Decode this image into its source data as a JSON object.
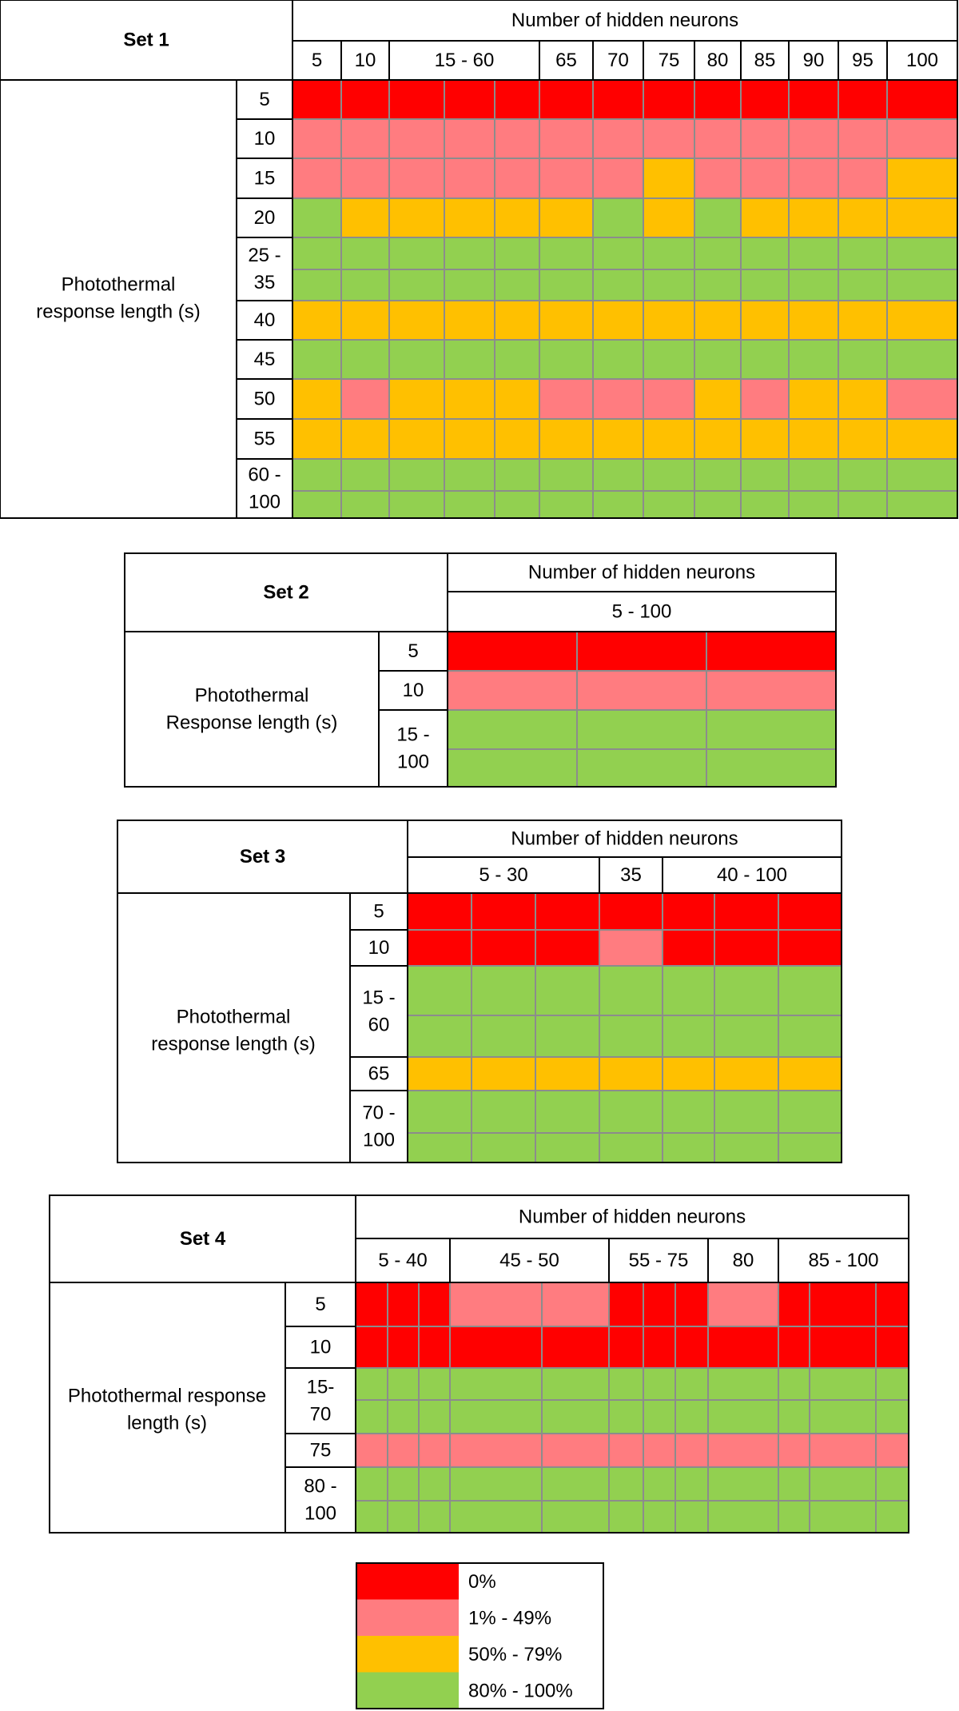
{
  "colors": {
    "c0": "#ff0000",
    "c1": "#ff7c80",
    "c2": "#ffc000",
    "c3": "#92d050",
    "grid": "#8c8c8c",
    "border": "#000000"
  },
  "chart_data": [
    {
      "type": "heatmap",
      "title": "Set 1",
      "xlabel": "Number of hidden neurons",
      "ylabel": "Photothermal response length (s)",
      "x_groups": [
        {
          "label": "5",
          "cols": 1
        },
        {
          "label": "10",
          "cols": 1
        },
        {
          "label": "15 - 60",
          "cols": 3
        },
        {
          "label": "65",
          "cols": 1
        },
        {
          "label": "70",
          "cols": 1
        },
        {
          "label": "75",
          "cols": 1
        },
        {
          "label": "80",
          "cols": 1
        },
        {
          "label": "85",
          "cols": 1
        },
        {
          "label": "90",
          "cols": 1
        },
        {
          "label": "95",
          "cols": 1
        },
        {
          "label": "100",
          "cols": 1
        }
      ],
      "y_groups": [
        {
          "label": "5",
          "rows": 1
        },
        {
          "label": "10",
          "rows": 1
        },
        {
          "label": "15",
          "rows": 1
        },
        {
          "label": "20",
          "rows": 1
        },
        {
          "label": "25 - 35",
          "rows": 2
        },
        {
          "label": "40",
          "rows": 1
        },
        {
          "label": "45",
          "rows": 1
        },
        {
          "label": "50",
          "rows": 1
        },
        {
          "label": "55",
          "rows": 1
        },
        {
          "label": "60 - 100",
          "rows": 2
        }
      ],
      "cells": [
        [
          0,
          0,
          0,
          0,
          0,
          0,
          0,
          0,
          0,
          0,
          0,
          0,
          0
        ],
        [
          1,
          1,
          1,
          1,
          1,
          1,
          1,
          1,
          1,
          1,
          1,
          1,
          1
        ],
        [
          1,
          1,
          1,
          1,
          1,
          1,
          1,
          2,
          1,
          1,
          1,
          1,
          2
        ],
        [
          3,
          2,
          2,
          2,
          2,
          2,
          3,
          2,
          3,
          2,
          2,
          2,
          2
        ],
        [
          3,
          3,
          3,
          3,
          3,
          3,
          3,
          3,
          3,
          3,
          3,
          3,
          3
        ],
        [
          3,
          3,
          3,
          3,
          3,
          3,
          3,
          3,
          3,
          3,
          3,
          3,
          3
        ],
        [
          2,
          2,
          2,
          2,
          2,
          2,
          2,
          2,
          2,
          2,
          2,
          2,
          2
        ],
        [
          3,
          3,
          3,
          3,
          3,
          3,
          3,
          3,
          3,
          3,
          3,
          3,
          3
        ],
        [
          2,
          1,
          2,
          2,
          2,
          1,
          1,
          1,
          2,
          1,
          2,
          2,
          1
        ],
        [
          2,
          2,
          2,
          2,
          2,
          2,
          2,
          2,
          2,
          2,
          2,
          2,
          2
        ],
        [
          3,
          3,
          3,
          3,
          3,
          3,
          3,
          3,
          3,
          3,
          3,
          3,
          3
        ],
        [
          3,
          3,
          3,
          3,
          3,
          3,
          3,
          3,
          3,
          3,
          3,
          3,
          3
        ]
      ]
    },
    {
      "type": "heatmap",
      "title": "Set 2",
      "xlabel": "Number of hidden neurons",
      "ylabel": "Photothermal Response length (s)",
      "x_groups": [
        {
          "label": "5 - 100",
          "cols": 3
        }
      ],
      "y_groups": [
        {
          "label": "5",
          "rows": 1
        },
        {
          "label": "10",
          "rows": 1
        },
        {
          "label": "15 - 100",
          "rows": 2
        }
      ],
      "cells": [
        [
          0,
          0,
          0
        ],
        [
          1,
          1,
          1
        ],
        [
          3,
          3,
          3
        ],
        [
          3,
          3,
          3
        ]
      ]
    },
    {
      "type": "heatmap",
      "title": "Set 3",
      "xlabel": "Number of hidden neurons",
      "ylabel": "Photothermal response length (s)",
      "x_groups": [
        {
          "label": "5 - 30",
          "cols": 3
        },
        {
          "label": "35",
          "cols": 1
        },
        {
          "label": "40 - 100",
          "cols": 3
        }
      ],
      "y_groups": [
        {
          "label": "5",
          "rows": 1
        },
        {
          "label": "10",
          "rows": 1
        },
        {
          "label": "15 - 60",
          "rows": 2
        },
        {
          "label": "65",
          "rows": 1
        },
        {
          "label": "70 - 100",
          "rows": 2
        }
      ],
      "cells": [
        [
          0,
          0,
          0,
          0,
          0,
          0,
          0
        ],
        [
          0,
          0,
          0,
          1,
          0,
          0,
          0
        ],
        [
          3,
          3,
          3,
          3,
          3,
          3,
          3
        ],
        [
          3,
          3,
          3,
          3,
          3,
          3,
          3
        ],
        [
          2,
          2,
          2,
          2,
          2,
          2,
          2
        ],
        [
          3,
          3,
          3,
          3,
          3,
          3,
          3
        ],
        [
          3,
          3,
          3,
          3,
          3,
          3,
          3
        ]
      ]
    },
    {
      "type": "heatmap",
      "title": "Set 4",
      "xlabel": "Number of hidden neurons",
      "ylabel": "Photothermal response length (s)",
      "x_groups": [
        {
          "label": "5 - 40",
          "cols": 3
        },
        {
          "label": "45 - 50",
          "cols": 2
        },
        {
          "label": "55 - 75",
          "cols": 3
        },
        {
          "label": "80",
          "cols": 1
        },
        {
          "label": "85 - 100",
          "cols": 3
        }
      ],
      "y_groups": [
        {
          "label": "5",
          "rows": 1
        },
        {
          "label": "10",
          "rows": 1
        },
        {
          "label": "15- 70",
          "rows": 2
        },
        {
          "label": "75",
          "rows": 1
        },
        {
          "label": "80 - 100",
          "rows": 2
        }
      ],
      "cells": [
        [
          0,
          0,
          0,
          1,
          1,
          0,
          0,
          0,
          1,
          0,
          0,
          0
        ],
        [
          0,
          0,
          0,
          0,
          0,
          0,
          0,
          0,
          0,
          0,
          0,
          0
        ],
        [
          3,
          3,
          3,
          3,
          3,
          3,
          3,
          3,
          3,
          3,
          3,
          3
        ],
        [
          3,
          3,
          3,
          3,
          3,
          3,
          3,
          3,
          3,
          3,
          3,
          3
        ],
        [
          1,
          1,
          1,
          1,
          1,
          1,
          1,
          1,
          1,
          1,
          1,
          1
        ],
        [
          3,
          3,
          3,
          3,
          3,
          3,
          3,
          3,
          3,
          3,
          3,
          3
        ],
        [
          3,
          3,
          3,
          3,
          3,
          3,
          3,
          3,
          3,
          3,
          3,
          3
        ]
      ]
    }
  ],
  "legend": [
    {
      "label": "0%",
      "level": 0
    },
    {
      "label": "1% - 49%",
      "level": 1
    },
    {
      "label": "50% - 79%",
      "level": 2
    },
    {
      "label": "80% - 100%",
      "level": 3
    }
  ]
}
